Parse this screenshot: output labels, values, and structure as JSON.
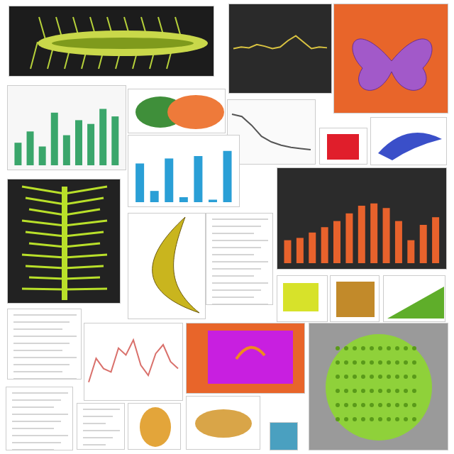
{
  "chart_data": [
    {
      "type": "bar",
      "color": "#3aa66b",
      "values": [
        30,
        45,
        25,
        70,
        40,
        60,
        55,
        75,
        65
      ],
      "ylim": [
        0,
        100
      ],
      "tick_labels": false
    },
    {
      "type": "bar",
      "color": "#2a9fd6",
      "values": [
        62,
        18,
        70,
        8,
        74,
        4,
        82
      ],
      "ylim": [
        0,
        100
      ],
      "tick_labels": false
    },
    {
      "type": "bar",
      "color": "#e8622c",
      "values": [
        30,
        33,
        40,
        47,
        55,
        65,
        75,
        78,
        72,
        55,
        30,
        50,
        60
      ],
      "ylim": [
        0,
        100
      ],
      "tick_labels": false
    },
    {
      "type": "line",
      "color": "#d9c341",
      "values": [
        50,
        52,
        51,
        55,
        53,
        50,
        52,
        60,
        66,
        58,
        50,
        52,
        51
      ],
      "ylim": [
        0,
        100
      ],
      "tick_labels": false
    },
    {
      "type": "line",
      "color": "#555555",
      "values": [
        82,
        78,
        62,
        42,
        32,
        26,
        22,
        20,
        18
      ],
      "ylim": [
        0,
        100
      ],
      "tick_labels": false
    },
    {
      "type": "line",
      "color": "#d9706b",
      "values": [
        20,
        55,
        40,
        35,
        70,
        60,
        82,
        45,
        30,
        62,
        75,
        50,
        40
      ],
      "ylim": [
        0,
        100
      ],
      "tick_labels": false
    }
  ]
}
